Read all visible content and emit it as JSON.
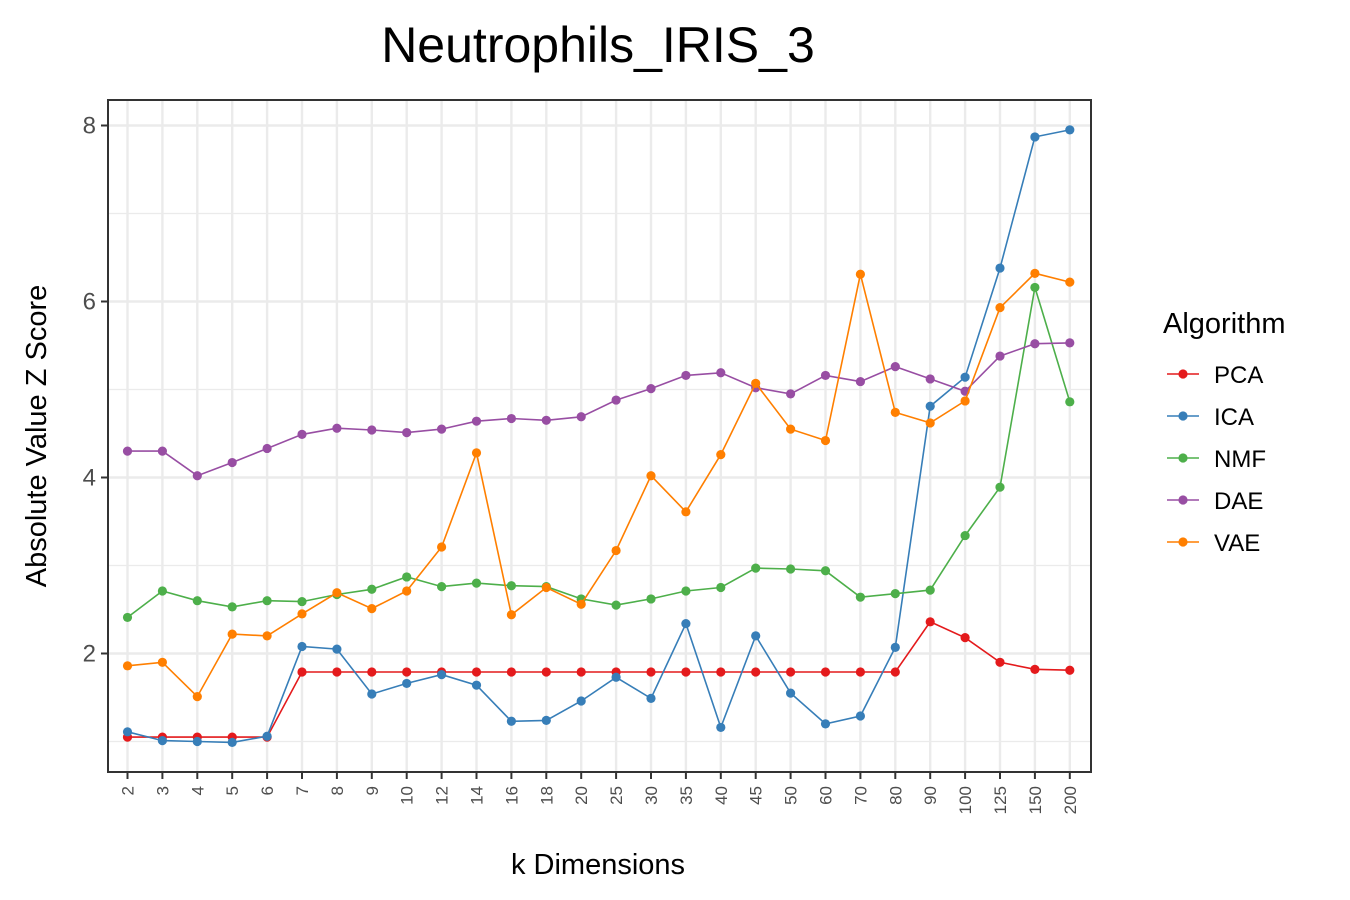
{
  "chart_data": {
    "type": "line",
    "title": "Neutrophils_IRIS_3",
    "xlabel": "k Dimensions",
    "ylabel": "Absolute Value Z Score",
    "categories": [
      "2",
      "3",
      "4",
      "5",
      "6",
      "7",
      "8",
      "9",
      "10",
      "12",
      "14",
      "16",
      "18",
      "20",
      "25",
      "30",
      "35",
      "40",
      "45",
      "50",
      "60",
      "70",
      "80",
      "90",
      "100",
      "125",
      "150",
      "200"
    ],
    "yticks": [
      "2",
      "4",
      "6",
      "8"
    ],
    "ylim": [
      0.8,
      8.2
    ],
    "grid": true,
    "legend": {
      "title": "Algorithm",
      "placement": "right"
    },
    "series": [
      {
        "name": "PCA",
        "color": "#E41A1C",
        "values": [
          1.05,
          1.05,
          1.05,
          1.05,
          1.05,
          1.79,
          1.79,
          1.79,
          1.79,
          1.79,
          1.79,
          1.79,
          1.79,
          1.79,
          1.79,
          1.79,
          1.79,
          1.79,
          1.79,
          1.79,
          1.79,
          1.79,
          1.79,
          2.36,
          2.18,
          1.9,
          1.82,
          1.81
        ]
      },
      {
        "name": "ICA",
        "color": "#377EB8",
        "values": [
          1.11,
          1.01,
          1.0,
          0.99,
          1.06,
          2.08,
          2.05,
          1.54,
          1.66,
          1.76,
          1.64,
          1.23,
          1.24,
          1.46,
          1.73,
          1.49,
          2.34,
          1.16,
          2.2,
          1.55,
          1.2,
          1.29,
          2.07,
          4.81,
          5.14,
          6.38,
          7.87,
          7.95
        ]
      },
      {
        "name": "NMF",
        "color": "#4DAF4A",
        "values": [
          2.41,
          2.71,
          2.6,
          2.53,
          2.6,
          2.59,
          2.67,
          2.73,
          2.87,
          2.76,
          2.8,
          2.77,
          2.76,
          2.62,
          2.55,
          2.62,
          2.71,
          2.75,
          2.97,
          2.96,
          2.94,
          2.64,
          2.68,
          2.72,
          3.34,
          3.89,
          6.16,
          4.86
        ]
      },
      {
        "name": "DAE",
        "color": "#984EA3",
        "values": [
          4.3,
          4.3,
          4.02,
          4.17,
          4.33,
          4.49,
          4.56,
          4.54,
          4.51,
          4.55,
          4.64,
          4.67,
          4.65,
          4.69,
          4.88,
          5.01,
          5.16,
          5.19,
          5.02,
          4.95,
          5.16,
          5.09,
          5.26,
          5.12,
          4.98,
          5.38,
          5.52,
          5.53
        ]
      },
      {
        "name": "VAE",
        "color": "#FF7F00",
        "values": [
          1.86,
          1.9,
          1.51,
          2.22,
          2.2,
          2.45,
          2.69,
          2.51,
          2.71,
          3.21,
          4.28,
          2.44,
          2.75,
          2.56,
          3.17,
          4.02,
          3.61,
          4.26,
          5.07,
          4.55,
          4.42,
          6.31,
          4.74,
          4.62,
          4.87,
          5.93,
          6.32,
          6.22
        ]
      }
    ]
  }
}
